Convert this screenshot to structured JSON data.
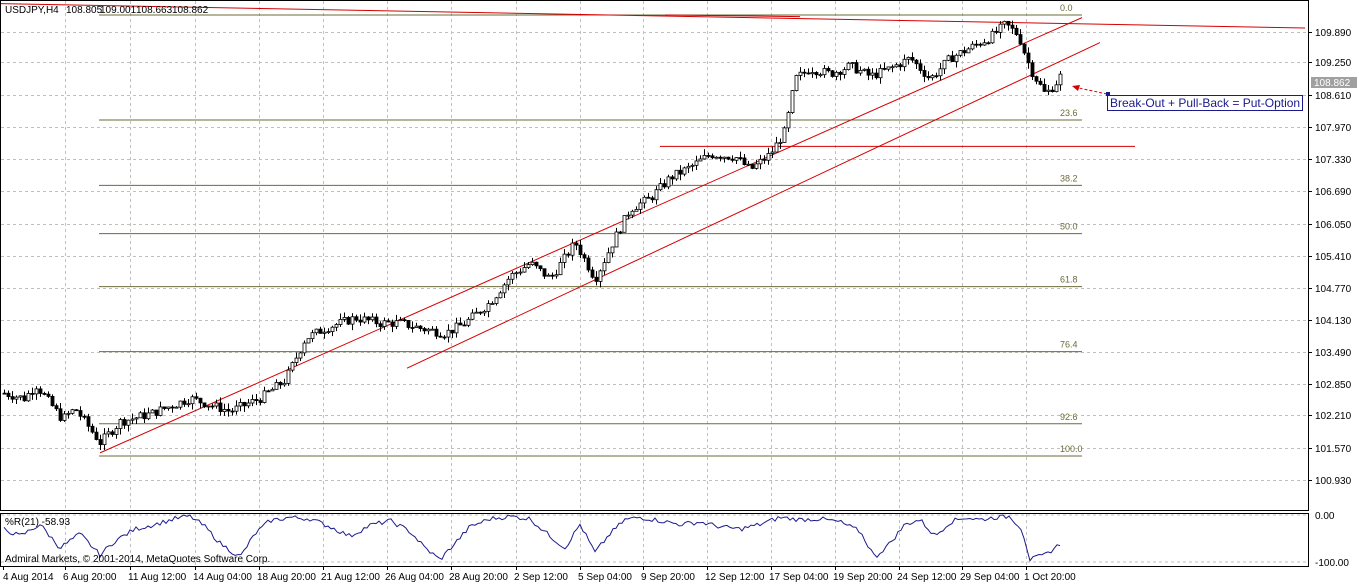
{
  "header": {
    "symbol": "USDJPY,H4",
    "open": "108.805",
    "high": "109.001",
    "low": "108.663",
    "close": "108.862"
  },
  "current_price_label": "108.862",
  "annotation": "Break-Out + Pull-Back = Put-Option",
  "colors": {
    "background": "#ffffff",
    "grid": "#c0c0c0",
    "frame": "#000000",
    "candle": "#000000",
    "trendline": "#d60000",
    "fib": "#6b6b3a",
    "oscillator": "#1a1a8c",
    "annotation": "#1a1a8c",
    "price_line": "#a0a0a0"
  },
  "copyright": "Admiral Markets, © 2001-2014, MetaQuotes Software Corp.",
  "chart_data": [
    {
      "type": "candlestick",
      "title": "USDJPY,H4",
      "y_ticks": [
        "109.890",
        "109.250",
        "108.610",
        "107.970",
        "107.330",
        "106.690",
        "106.050",
        "105.410",
        "104.770",
        "104.130",
        "103.490",
        "102.850",
        "102.210",
        "101.570",
        "100.930"
      ],
      "ylim": [
        100.45,
        110.25
      ],
      "x_ticks": [
        "4 Aug 2014",
        "6 Aug 20:00",
        "11 Aug 12:00",
        "14 Aug 04:00",
        "18 Aug 20:00",
        "21 Aug 12:00",
        "26 Aug 04:00",
        "28 Aug 20:00",
        "2 Sep 12:00",
        "5 Sep 04:00",
        "9 Sep 20:00",
        "12 Sep 12:00",
        "17 Sep 04:00",
        "19 Sep 20:00",
        "24 Sep 12:00",
        "29 Sep 04:00",
        "1 Oct 20:00"
      ],
      "grid": true,
      "fibonacci_levels": [
        {
          "label": "0.0",
          "price": 109.98
        },
        {
          "label": "23.6",
          "price": 107.96
        },
        {
          "label": "38.2",
          "price": 106.7
        },
        {
          "label": "50.0",
          "price": 105.77
        },
        {
          "label": "61.8",
          "price": 104.75
        },
        {
          "label": "76.4",
          "price": 103.5
        },
        {
          "label": "92.6",
          "price": 102.11
        },
        {
          "label": "100.0",
          "price": 101.49
        }
      ],
      "key_prices": {
        "open": 108.805,
        "high": 109.001,
        "low": 108.663,
        "close": 108.862
      },
      "series_shape": [
        [
          4,
          102.7
        ],
        [
          24,
          102.6
        ],
        [
          36,
          102.85
        ],
        [
          48,
          102.55
        ],
        [
          62,
          102.2
        ],
        [
          75,
          102.4
        ],
        [
          100,
          101.75
        ],
        [
          120,
          102.15
        ],
        [
          150,
          102.3
        ],
        [
          190,
          102.6
        ],
        [
          230,
          102.35
        ],
        [
          260,
          102.6
        ],
        [
          285,
          102.95
        ],
        [
          305,
          103.75
        ],
        [
          325,
          103.95
        ],
        [
          355,
          104.15
        ],
        [
          380,
          104.05
        ],
        [
          400,
          104.05
        ],
        [
          420,
          103.95
        ],
        [
          445,
          103.85
        ],
        [
          465,
          104.05
        ],
        [
          490,
          104.45
        ],
        [
          510,
          104.95
        ],
        [
          530,
          105.2
        ],
        [
          550,
          104.9
        ],
        [
          575,
          105.6
        ],
        [
          595,
          104.9
        ],
        [
          615,
          105.7
        ],
        [
          630,
          106.25
        ],
        [
          650,
          106.45
        ],
        [
          670,
          106.85
        ],
        [
          690,
          107.05
        ],
        [
          710,
          107.3
        ],
        [
          735,
          107.25
        ],
        [
          750,
          107.0
        ],
        [
          770,
          107.3
        ],
        [
          785,
          107.75
        ],
        [
          795,
          108.75
        ],
        [
          810,
          108.95
        ],
        [
          830,
          108.85
        ],
        [
          850,
          109.0
        ],
        [
          870,
          108.8
        ],
        [
          890,
          108.95
        ],
        [
          910,
          109.15
        ],
        [
          930,
          108.75
        ],
        [
          950,
          109.15
        ],
        [
          970,
          109.35
        ],
        [
          990,
          109.55
        ],
        [
          1005,
          109.8
        ],
        [
          1018,
          109.6
        ],
        [
          1030,
          108.95
        ],
        [
          1045,
          108.45
        ],
        [
          1055,
          108.65
        ],
        [
          1062,
          108.86
        ]
      ],
      "trendlines": [
        {
          "from": [
            0,
            110.2
          ],
          "to": [
            1305,
            109.73
          ]
        },
        {
          "from": [
            100,
            101.55
          ],
          "to": [
            1082,
            109.93
          ]
        },
        {
          "from": [
            407,
            103.18
          ],
          "to": [
            1100,
            109.45
          ]
        },
        {
          "from": [
            660,
            107.45
          ],
          "to": [
            1135,
            107.45
          ]
        },
        {
          "from": [
            665,
            109.98
          ],
          "to": [
            800,
            109.95
          ]
        }
      ]
    },
    {
      "type": "line",
      "title": "%R(21) -58.93",
      "y_ticks": [
        "0.00",
        "-100.00"
      ],
      "ylim": [
        -100,
        0
      ],
      "series_shape": [
        [
          4,
          -30
        ],
        [
          20,
          -45
        ],
        [
          40,
          -20
        ],
        [
          60,
          -70
        ],
        [
          80,
          -40
        ],
        [
          100,
          -85
        ],
        [
          115,
          -55
        ],
        [
          135,
          -30
        ],
        [
          155,
          -20
        ],
        [
          175,
          -8
        ],
        [
          190,
          -2
        ],
        [
          205,
          -25
        ],
        [
          220,
          -60
        ],
        [
          240,
          -90
        ],
        [
          255,
          -40
        ],
        [
          270,
          -12
        ],
        [
          290,
          -5
        ],
        [
          310,
          -8
        ],
        [
          330,
          -25
        ],
        [
          350,
          -45
        ],
        [
          370,
          -22
        ],
        [
          390,
          -12
        ],
        [
          410,
          -35
        ],
        [
          425,
          -70
        ],
        [
          440,
          -95
        ],
        [
          455,
          -60
        ],
        [
          470,
          -25
        ],
        [
          490,
          -8
        ],
        [
          510,
          -3
        ],
        [
          530,
          -8
        ],
        [
          550,
          -45
        ],
        [
          565,
          -70
        ],
        [
          580,
          -20
        ],
        [
          595,
          -80
        ],
        [
          610,
          -40
        ],
        [
          625,
          -10
        ],
        [
          640,
          -5
        ],
        [
          660,
          -12
        ],
        [
          680,
          -20
        ],
        [
          700,
          -15
        ],
        [
          720,
          -25
        ],
        [
          740,
          -30
        ],
        [
          760,
          -20
        ],
        [
          780,
          -5
        ],
        [
          800,
          -10
        ],
        [
          820,
          -8
        ],
        [
          840,
          -15
        ],
        [
          860,
          -35
        ],
        [
          875,
          -90
        ],
        [
          890,
          -60
        ],
        [
          905,
          -20
        ],
        [
          920,
          -10
        ],
        [
          935,
          -45
        ],
        [
          950,
          -15
        ],
        [
          965,
          -5
        ],
        [
          980,
          -10
        ],
        [
          995,
          -5
        ],
        [
          1010,
          -3
        ],
        [
          1022,
          -30
        ],
        [
          1030,
          -95
        ],
        [
          1045,
          -85
        ],
        [
          1062,
          -59
        ]
      ]
    }
  ]
}
